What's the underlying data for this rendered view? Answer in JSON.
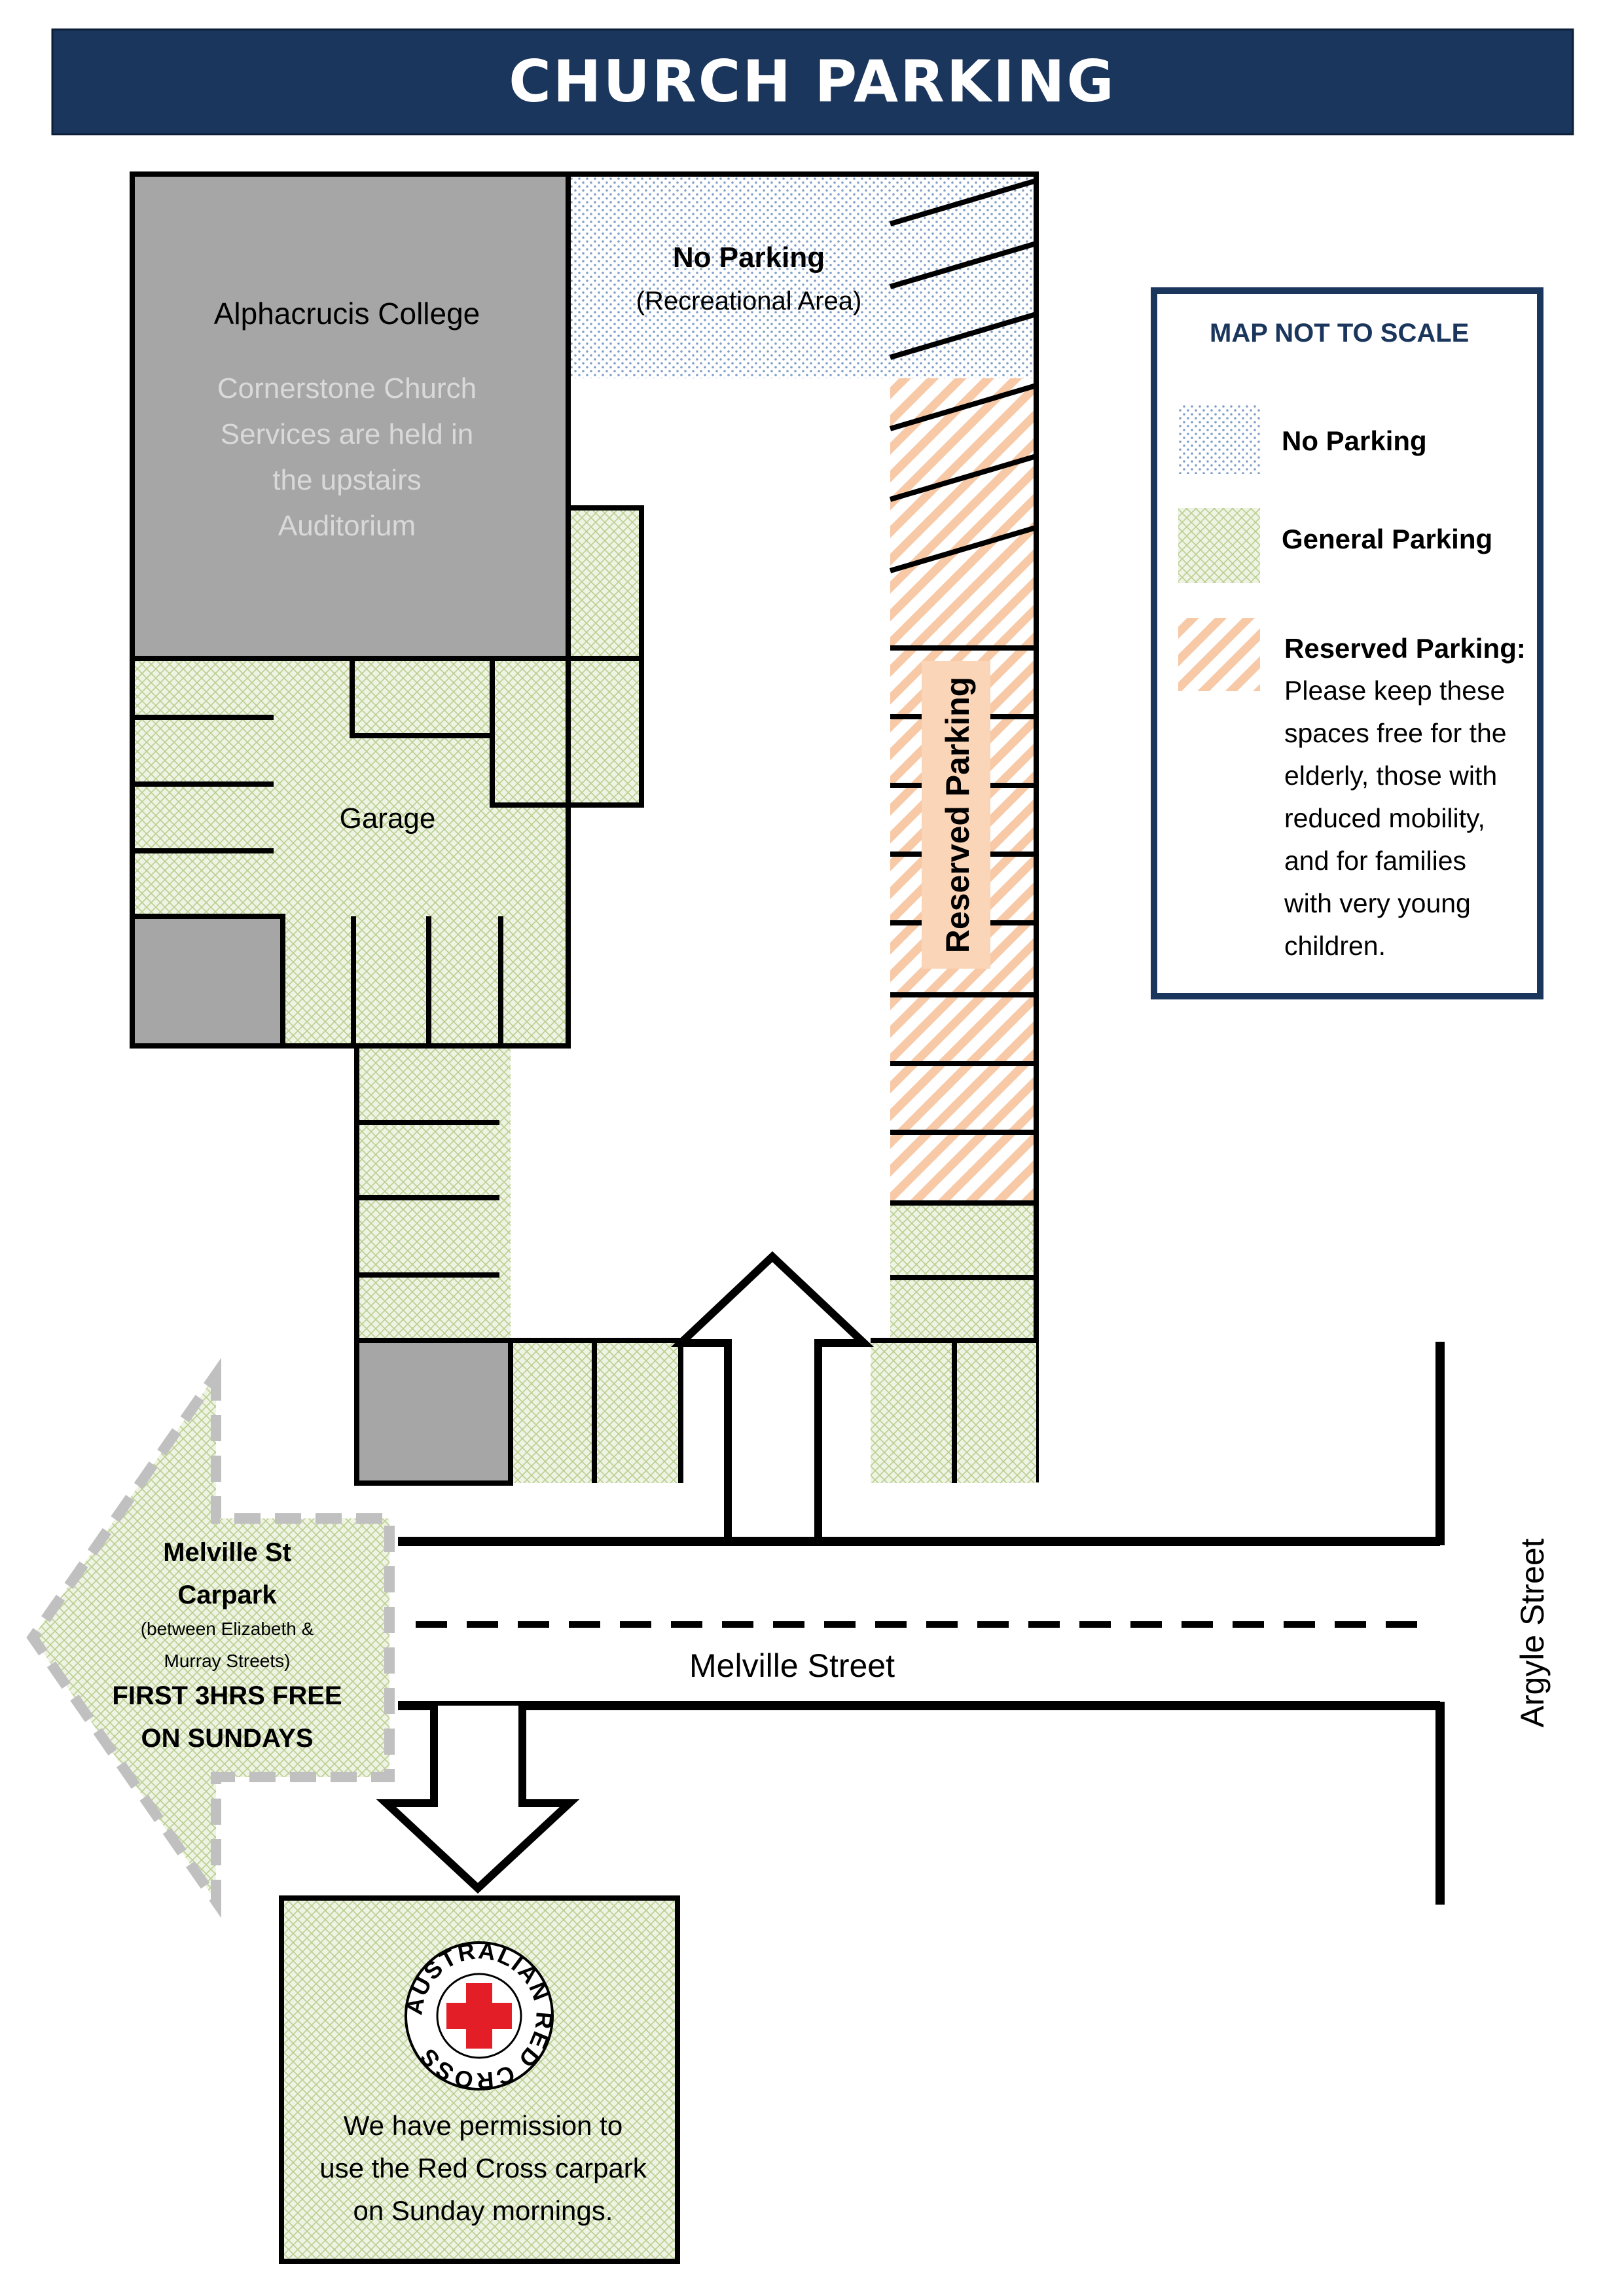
{
  "header": {
    "title": "CHURCH PARKING"
  },
  "colors": {
    "header_bg": "#1b365d",
    "building_grey": "#a6a6a6",
    "general_parking": "#ebf1de",
    "general_parking_pattern": "#9bbb59",
    "no_parking_pattern": "#4f81bd",
    "reserved_parking": "#f4b183",
    "red_cross": "#e41e26",
    "legend_border": "#1b365d"
  },
  "buildings": {
    "college_name": "Alphacrucis College",
    "church_lines": [
      "Cornerstone Church",
      "Services are held in",
      "the upstairs",
      "Auditorium"
    ],
    "garage": "Garage"
  },
  "zones": {
    "no_parking_title": "No Parking",
    "no_parking_sub": "(Recreational Area)",
    "reserved_label": "Reserved Parking"
  },
  "legend": {
    "title": "MAP NOT TO SCALE",
    "no_parking": "No Parking",
    "general_parking": "General Parking",
    "reserved_title": "Reserved Parking:",
    "reserved_lines": [
      "Please keep these",
      "spaces free for the",
      "elderly, those with",
      "reduced mobility,",
      "and for families",
      "with very young",
      "children."
    ]
  },
  "streets": {
    "melville": "Melville Street",
    "argyle": "Argyle Street"
  },
  "melville_carpark": {
    "line1": "Melville St",
    "line2": "Carpark",
    "note1": "(between Elizabeth &",
    "note2": "Murray Streets)",
    "offer1": "FIRST 3HRS FREE",
    "offer2": "ON SUNDAYS"
  },
  "red_cross": {
    "logo_text": "AUSTRALIAN RED CROSS",
    "lines": [
      "We have permission to",
      "use the Red Cross carpark",
      "on Sunday mornings."
    ]
  }
}
